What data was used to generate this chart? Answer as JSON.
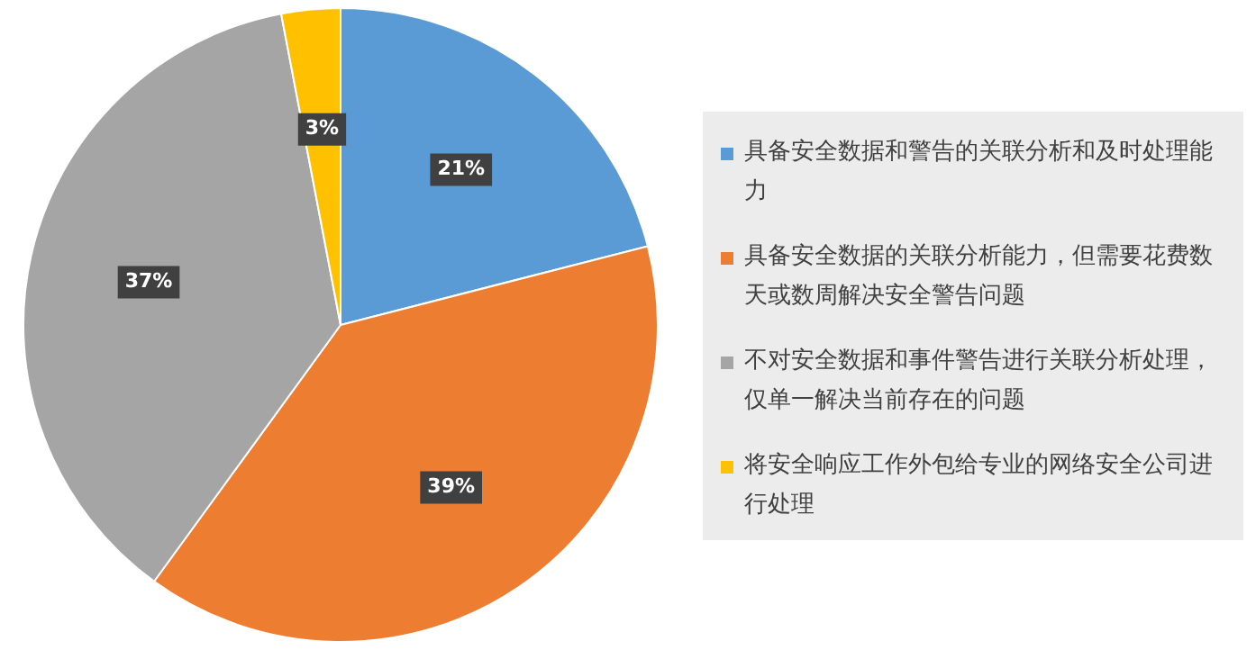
{
  "chart_data": {
    "type": "pie",
    "categories": [
      "具备安全数据和警告的关联分析和及时处理能力",
      "具备安全数据的关联分析能力，但需要花费数天或数周解决安全警告问题",
      "不对安全数据和事件警告进行关联分析处理，仅单一解决当前存在的问题",
      "将安全响应工作外包给专业的网络安全公司进行处理"
    ],
    "values": [
      21,
      39,
      37,
      3
    ],
    "value_labels": [
      "21%",
      "39%",
      "37%",
      "3%"
    ],
    "colors": [
      "#5b9bd5",
      "#ed7d31",
      "#a5a5a5",
      "#ffc000"
    ],
    "legend": "right"
  }
}
